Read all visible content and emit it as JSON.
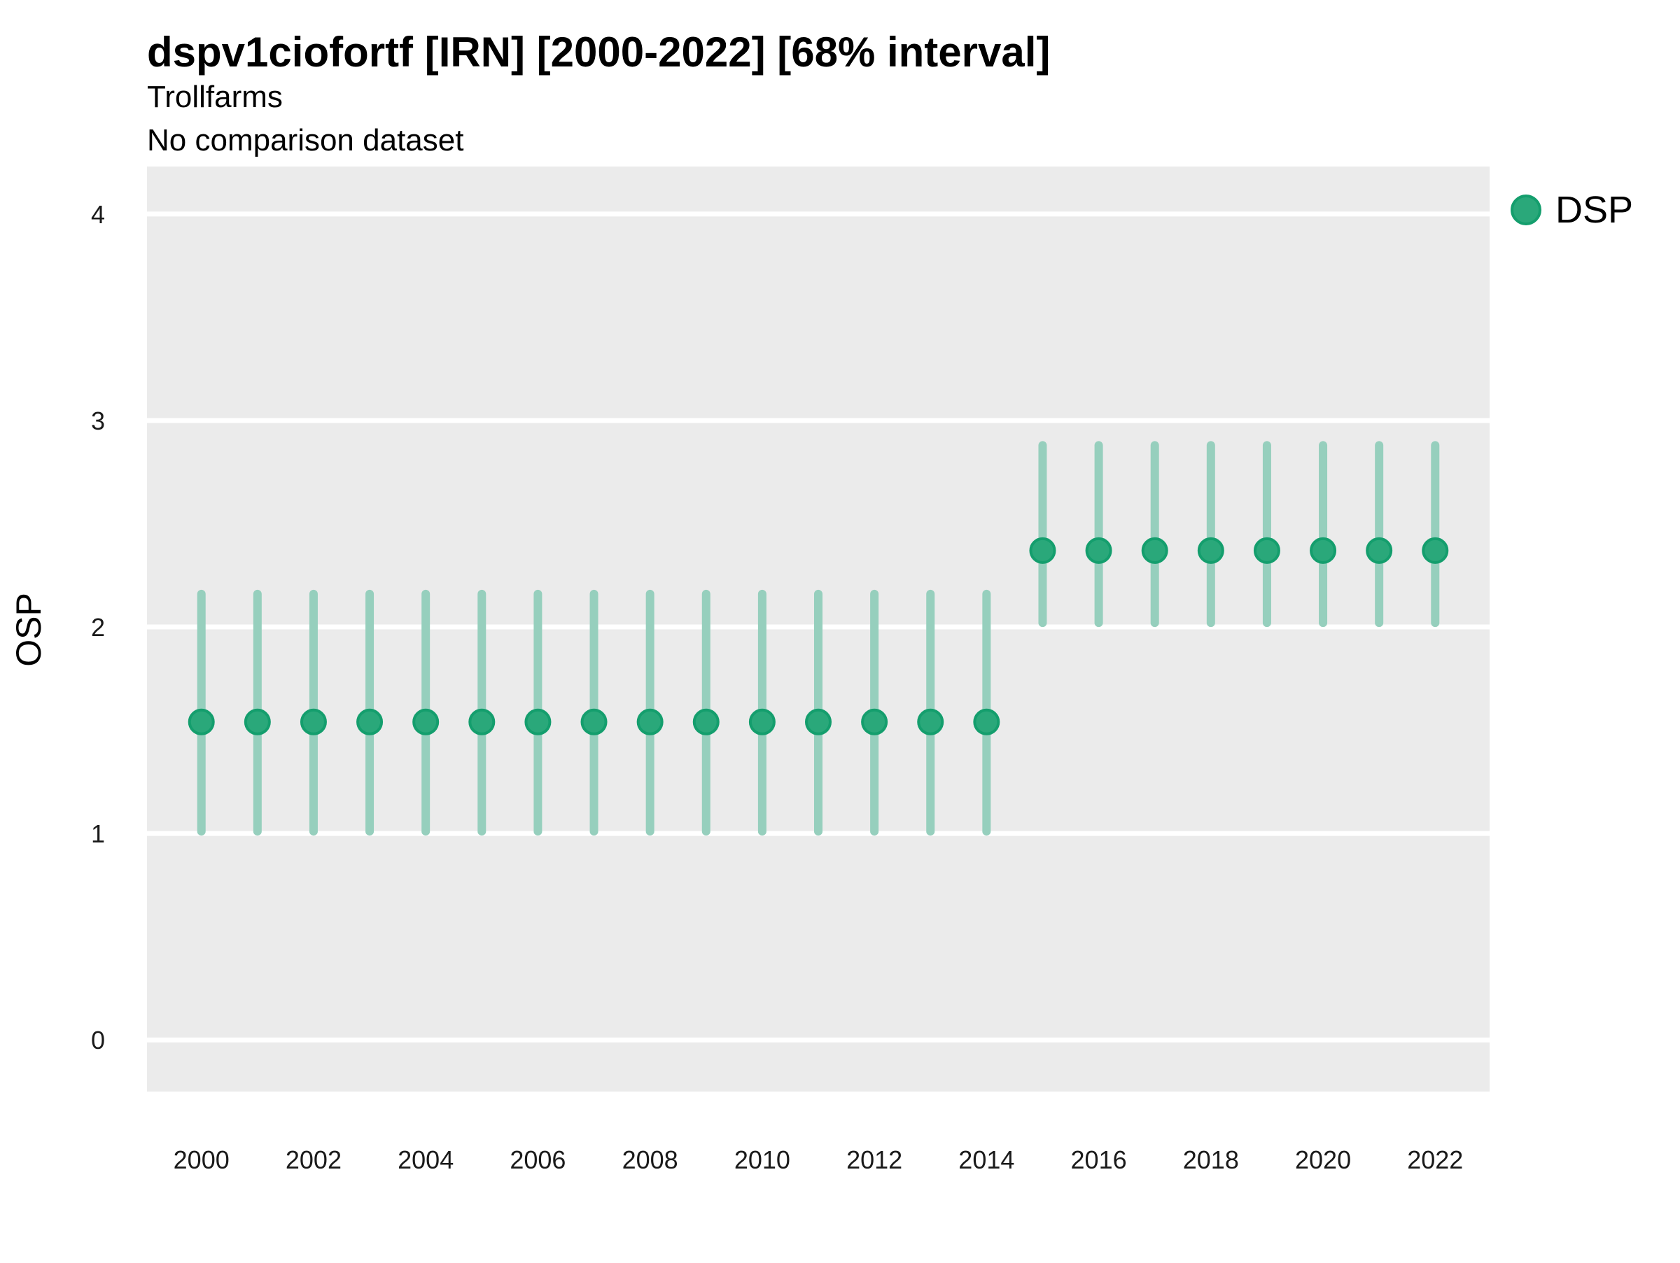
{
  "header": {
    "title": "dspv1ciofortf [IRN] [2000-2022] [68% interval]",
    "subtitle": "Trollfarms",
    "caption": "No comparison dataset"
  },
  "legend": {
    "position": "right-top",
    "items": [
      {
        "label": "DSP",
        "swatch": "circle",
        "color": "#2aa87a"
      }
    ]
  },
  "colors": {
    "panel_bg": "#ebebeb",
    "grid": "#ffffff",
    "marker_fill": "#2aa87a",
    "marker_stroke": "#149e6d",
    "interval_line": "#96cfbd",
    "text": "#000000"
  },
  "chart_data": {
    "type": "scatter",
    "title": "dspv1ciofortf [IRN] [2000-2022] [68% interval]",
    "subtitle": "Trollfarms",
    "caption": "No comparison dataset",
    "xlabel": "",
    "ylabel": "OSP",
    "interval_level": "68%",
    "grid": "white major horizontal gridlines on gray panel",
    "legend_position": "right",
    "ylim": [
      -0.25,
      4.23
    ],
    "xlim": [
      1999.03,
      2022.97
    ],
    "yticks": [
      0,
      1,
      2,
      3,
      4
    ],
    "xticks": [
      2000,
      2002,
      2004,
      2006,
      2008,
      2010,
      2012,
      2014,
      2016,
      2018,
      2020,
      2022
    ],
    "series": [
      {
        "name": "DSP",
        "marker_color": "#2aa87a",
        "marker_stroke": "#149e6d",
        "interval_color": "#96cfbd",
        "points": [
          {
            "year": 2000,
            "value": 1.54,
            "lo": 1.01,
            "hi": 2.16
          },
          {
            "year": 2001,
            "value": 1.54,
            "lo": 1.01,
            "hi": 2.16
          },
          {
            "year": 2002,
            "value": 1.54,
            "lo": 1.01,
            "hi": 2.16
          },
          {
            "year": 2003,
            "value": 1.54,
            "lo": 1.01,
            "hi": 2.16
          },
          {
            "year": 2004,
            "value": 1.54,
            "lo": 1.01,
            "hi": 2.16
          },
          {
            "year": 2005,
            "value": 1.54,
            "lo": 1.01,
            "hi": 2.16
          },
          {
            "year": 2006,
            "value": 1.54,
            "lo": 1.01,
            "hi": 2.16
          },
          {
            "year": 2007,
            "value": 1.54,
            "lo": 1.01,
            "hi": 2.16
          },
          {
            "year": 2008,
            "value": 1.54,
            "lo": 1.01,
            "hi": 2.16
          },
          {
            "year": 2009,
            "value": 1.54,
            "lo": 1.01,
            "hi": 2.16
          },
          {
            "year": 2010,
            "value": 1.54,
            "lo": 1.01,
            "hi": 2.16
          },
          {
            "year": 2011,
            "value": 1.54,
            "lo": 1.01,
            "hi": 2.16
          },
          {
            "year": 2012,
            "value": 1.54,
            "lo": 1.01,
            "hi": 2.16
          },
          {
            "year": 2013,
            "value": 1.54,
            "lo": 1.01,
            "hi": 2.16
          },
          {
            "year": 2014,
            "value": 1.54,
            "lo": 1.01,
            "hi": 2.16
          },
          {
            "year": 2015,
            "value": 2.37,
            "lo": 2.02,
            "hi": 2.88
          },
          {
            "year": 2016,
            "value": 2.37,
            "lo": 2.02,
            "hi": 2.88
          },
          {
            "year": 2017,
            "value": 2.37,
            "lo": 2.02,
            "hi": 2.88
          },
          {
            "year": 2018,
            "value": 2.37,
            "lo": 2.02,
            "hi": 2.88
          },
          {
            "year": 2019,
            "value": 2.37,
            "lo": 2.02,
            "hi": 2.88
          },
          {
            "year": 2020,
            "value": 2.37,
            "lo": 2.02,
            "hi": 2.88
          },
          {
            "year": 2021,
            "value": 2.37,
            "lo": 2.02,
            "hi": 2.88
          },
          {
            "year": 2022,
            "value": 2.37,
            "lo": 2.02,
            "hi": 2.88
          }
        ]
      }
    ]
  }
}
